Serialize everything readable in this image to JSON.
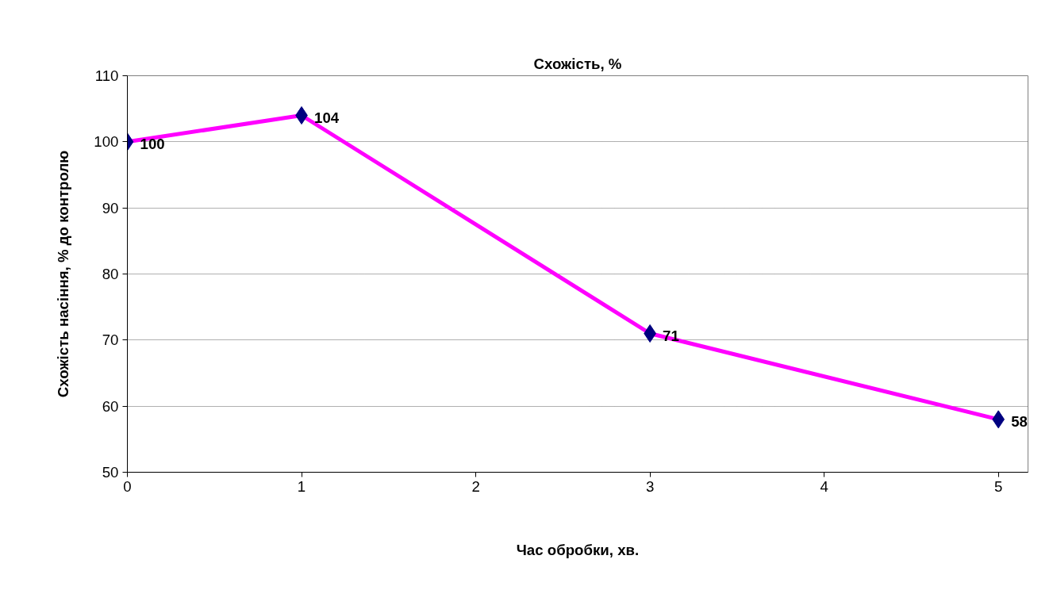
{
  "chart_data": {
    "type": "line",
    "title": "Схожість, %",
    "xlabel": "Час обробки, хв.",
    "ylabel": "Схожість насіння, % до контролю",
    "x": [
      0,
      1,
      3,
      5
    ],
    "series": [
      {
        "color": "#ff00ff",
        "colors": [
          "#000080",
          "#000080",
          "#000080",
          "#000080"
        ],
        "values": [
          100,
          104,
          71,
          58
        ]
      }
    ],
    "marker": "diamond",
    "line_style": "solid",
    "xlim": [
      0,
      5.17
    ],
    "xticks": [
      0,
      1,
      2,
      3,
      4,
      5
    ],
    "ylim": [
      50,
      110
    ],
    "yticks": [
      50,
      60,
      70,
      80,
      90,
      100,
      110
    ],
    "grid": "y",
    "data_labels": true
  }
}
